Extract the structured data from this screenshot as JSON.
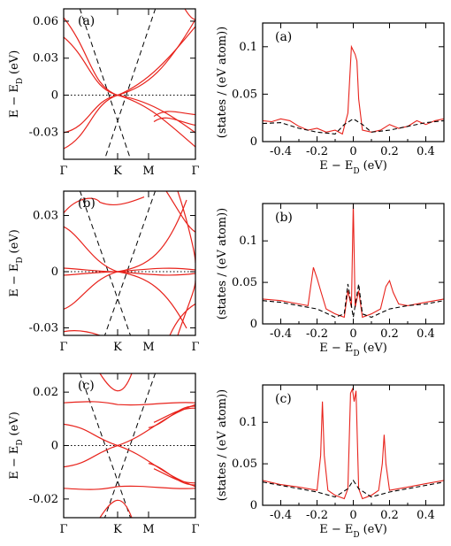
{
  "chart_data": [
    {
      "id": "band-a",
      "type": "line",
      "panel_label": "(a)",
      "xlabel": "",
      "ylabel_main": "E − E",
      "ylabel_sub": "D",
      "ylabel_unit": "(eV)",
      "x_tick_labels": [
        "Γ",
        "K",
        "M",
        "Γ"
      ],
      "y_ticks": [
        -0.03,
        0,
        0.03,
        0.06
      ],
      "y_tick_labels": [
        "-0.03",
        "0",
        "0.03",
        "0.06"
      ],
      "ylim": [
        -0.052,
        0.07
      ],
      "grid": false
    },
    {
      "id": "dos-a",
      "type": "line",
      "panel_label": "(a)",
      "xlabel_main": "E − E",
      "xlabel_sub": "D",
      "xlabel_unit": "(eV)",
      "ylabel": "(states / (eV atom))",
      "x_ticks": [
        -0.4,
        -0.2,
        0,
        0.2,
        0.4
      ],
      "x_tick_labels": [
        "-0.4",
        "-0.2",
        "0",
        "0.2",
        "0.4"
      ],
      "y_ticks": [
        0,
        0.05,
        0.1
      ],
      "y_tick_labels": [
        "0",
        "0.05",
        "0.1"
      ],
      "xlim": [
        -0.5,
        0.5
      ],
      "ylim": [
        0,
        0.125
      ],
      "series": [
        {
          "color": "#e8231c",
          "x": [
            -0.5,
            -0.45,
            -0.4,
            -0.35,
            -0.3,
            -0.25,
            -0.2,
            -0.15,
            -0.1,
            -0.06,
            -0.03,
            -0.01,
            0,
            0.01,
            0.02,
            0.03,
            0.05,
            0.1,
            0.15,
            0.2,
            0.25,
            0.3,
            0.35,
            0.4,
            0.45,
            0.5
          ],
          "y": [
            0.022,
            0.021,
            0.024,
            0.022,
            0.016,
            0.012,
            0.014,
            0.01,
            0.012,
            0.008,
            0.03,
            0.1,
            0.096,
            0.092,
            0.085,
            0.045,
            0.012,
            0.01,
            0.012,
            0.018,
            0.014,
            0.016,
            0.022,
            0.018,
            0.022,
            0.024
          ]
        },
        {
          "color": "#000000",
          "dash": true,
          "x": [
            -0.5,
            -0.4,
            -0.3,
            -0.2,
            -0.1,
            -0.05,
            0,
            0.05,
            0.1,
            0.2,
            0.3,
            0.4,
            0.5
          ],
          "y": [
            0.019,
            0.02,
            0.014,
            0.01,
            0.008,
            0.018,
            0.024,
            0.018,
            0.01,
            0.012,
            0.016,
            0.02,
            0.022
          ]
        }
      ]
    },
    {
      "id": "band-b",
      "type": "line",
      "panel_label": "(b)",
      "xlabel": "",
      "ylabel_main": "E − E",
      "ylabel_sub": "D",
      "ylabel_unit": "(eV)",
      "x_tick_labels": [
        "Γ",
        "K",
        "M",
        "Γ"
      ],
      "y_ticks": [
        -0.03,
        0,
        0.03
      ],
      "y_tick_labels": [
        "-0.03",
        "0",
        "0.03"
      ],
      "ylim": [
        -0.034,
        0.043
      ],
      "grid": false
    },
    {
      "id": "dos-b",
      "type": "line",
      "panel_label": "(b)",
      "xlabel_main": "E − E",
      "xlabel_sub": "D",
      "xlabel_unit": "(eV)",
      "ylabel": "(states / (eV atom))",
      "x_ticks": [
        -0.4,
        -0.2,
        0,
        0.2,
        0.4
      ],
      "x_tick_labels": [
        "-0.4",
        "-0.2",
        "0",
        "0.2",
        "0.4"
      ],
      "y_ticks": [
        0,
        0.05,
        0.1
      ],
      "y_tick_labels": [
        "0",
        "0.05",
        "0.1"
      ],
      "xlim": [
        -0.5,
        0.5
      ],
      "ylim": [
        0,
        0.145
      ],
      "series": [
        {
          "color": "#e8231c",
          "x": [
            -0.5,
            -0.4,
            -0.3,
            -0.25,
            -0.22,
            -0.2,
            -0.18,
            -0.15,
            -0.1,
            -0.05,
            -0.03,
            -0.01,
            0,
            0.01,
            0.03,
            0.05,
            0.1,
            0.15,
            0.18,
            0.2,
            0.22,
            0.25,
            0.3,
            0.4,
            0.5
          ],
          "y": [
            0.03,
            0.028,
            0.024,
            0.022,
            0.068,
            0.055,
            0.04,
            0.018,
            0.012,
            0.008,
            0.04,
            0.02,
            0.145,
            0.02,
            0.04,
            0.008,
            0.012,
            0.018,
            0.045,
            0.052,
            0.038,
            0.024,
            0.022,
            0.026,
            0.03
          ]
        },
        {
          "color": "#000000",
          "dash": true,
          "x": [
            -0.5,
            -0.4,
            -0.3,
            -0.2,
            -0.1,
            -0.05,
            -0.03,
            0,
            0.03,
            0.05,
            0.1,
            0.2,
            0.3,
            0.4,
            0.5
          ],
          "y": [
            0.028,
            0.026,
            0.022,
            0.018,
            0.008,
            0.012,
            0.048,
            0.008,
            0.048,
            0.012,
            0.008,
            0.018,
            0.022,
            0.024,
            0.028
          ]
        }
      ]
    },
    {
      "id": "band-c",
      "type": "line",
      "panel_label": "(c)",
      "xlabel": "",
      "ylabel_main": "E − E",
      "ylabel_sub": "D",
      "ylabel_unit": "(eV)",
      "x_tick_labels": [
        "Γ",
        "K",
        "M",
        "Γ"
      ],
      "y_ticks": [
        -0.02,
        0,
        0.02
      ],
      "y_tick_labels": [
        "-0.02",
        "0",
        "0.02"
      ],
      "ylim": [
        -0.027,
        0.027
      ],
      "grid": false
    },
    {
      "id": "dos-c",
      "type": "line",
      "panel_label": "(c)",
      "xlabel_main": "E − E",
      "xlabel_sub": "D",
      "xlabel_unit": "(eV)",
      "ylabel": "(states / (eV atom))",
      "x_ticks": [
        -0.4,
        -0.2,
        0,
        0.2,
        0.4
      ],
      "x_tick_labels": [
        "-0.4",
        "-0.2",
        "0",
        "0.2",
        "0.4"
      ],
      "y_ticks": [
        0,
        0.05,
        0.1
      ],
      "y_tick_labels": [
        "0",
        "0.05",
        "0.1"
      ],
      "xlim": [
        -0.5,
        0.5
      ],
      "ylim": [
        0,
        0.145
      ],
      "series": [
        {
          "color": "#e8231c",
          "x": [
            -0.5,
            -0.4,
            -0.3,
            -0.2,
            -0.18,
            -0.17,
            -0.16,
            -0.14,
            -0.1,
            -0.05,
            -0.03,
            -0.015,
            -0.005,
            0.005,
            0.015,
            0.03,
            0.05,
            0.1,
            0.14,
            0.16,
            0.17,
            0.18,
            0.2,
            0.3,
            0.4,
            0.5
          ],
          "y": [
            0.03,
            0.025,
            0.022,
            0.018,
            0.06,
            0.125,
            0.06,
            0.018,
            0.012,
            0.008,
            0.02,
            0.135,
            0.14,
            0.125,
            0.138,
            0.02,
            0.008,
            0.012,
            0.018,
            0.05,
            0.085,
            0.05,
            0.018,
            0.022,
            0.026,
            0.03
          ]
        },
        {
          "color": "#000000",
          "dash": true,
          "x": [
            -0.5,
            -0.4,
            -0.3,
            -0.2,
            -0.1,
            -0.03,
            0,
            0.03,
            0.1,
            0.2,
            0.3,
            0.4,
            0.5
          ],
          "y": [
            0.028,
            0.024,
            0.02,
            0.016,
            0.01,
            0.02,
            0.03,
            0.02,
            0.01,
            0.016,
            0.02,
            0.024,
            0.028
          ]
        }
      ]
    }
  ]
}
